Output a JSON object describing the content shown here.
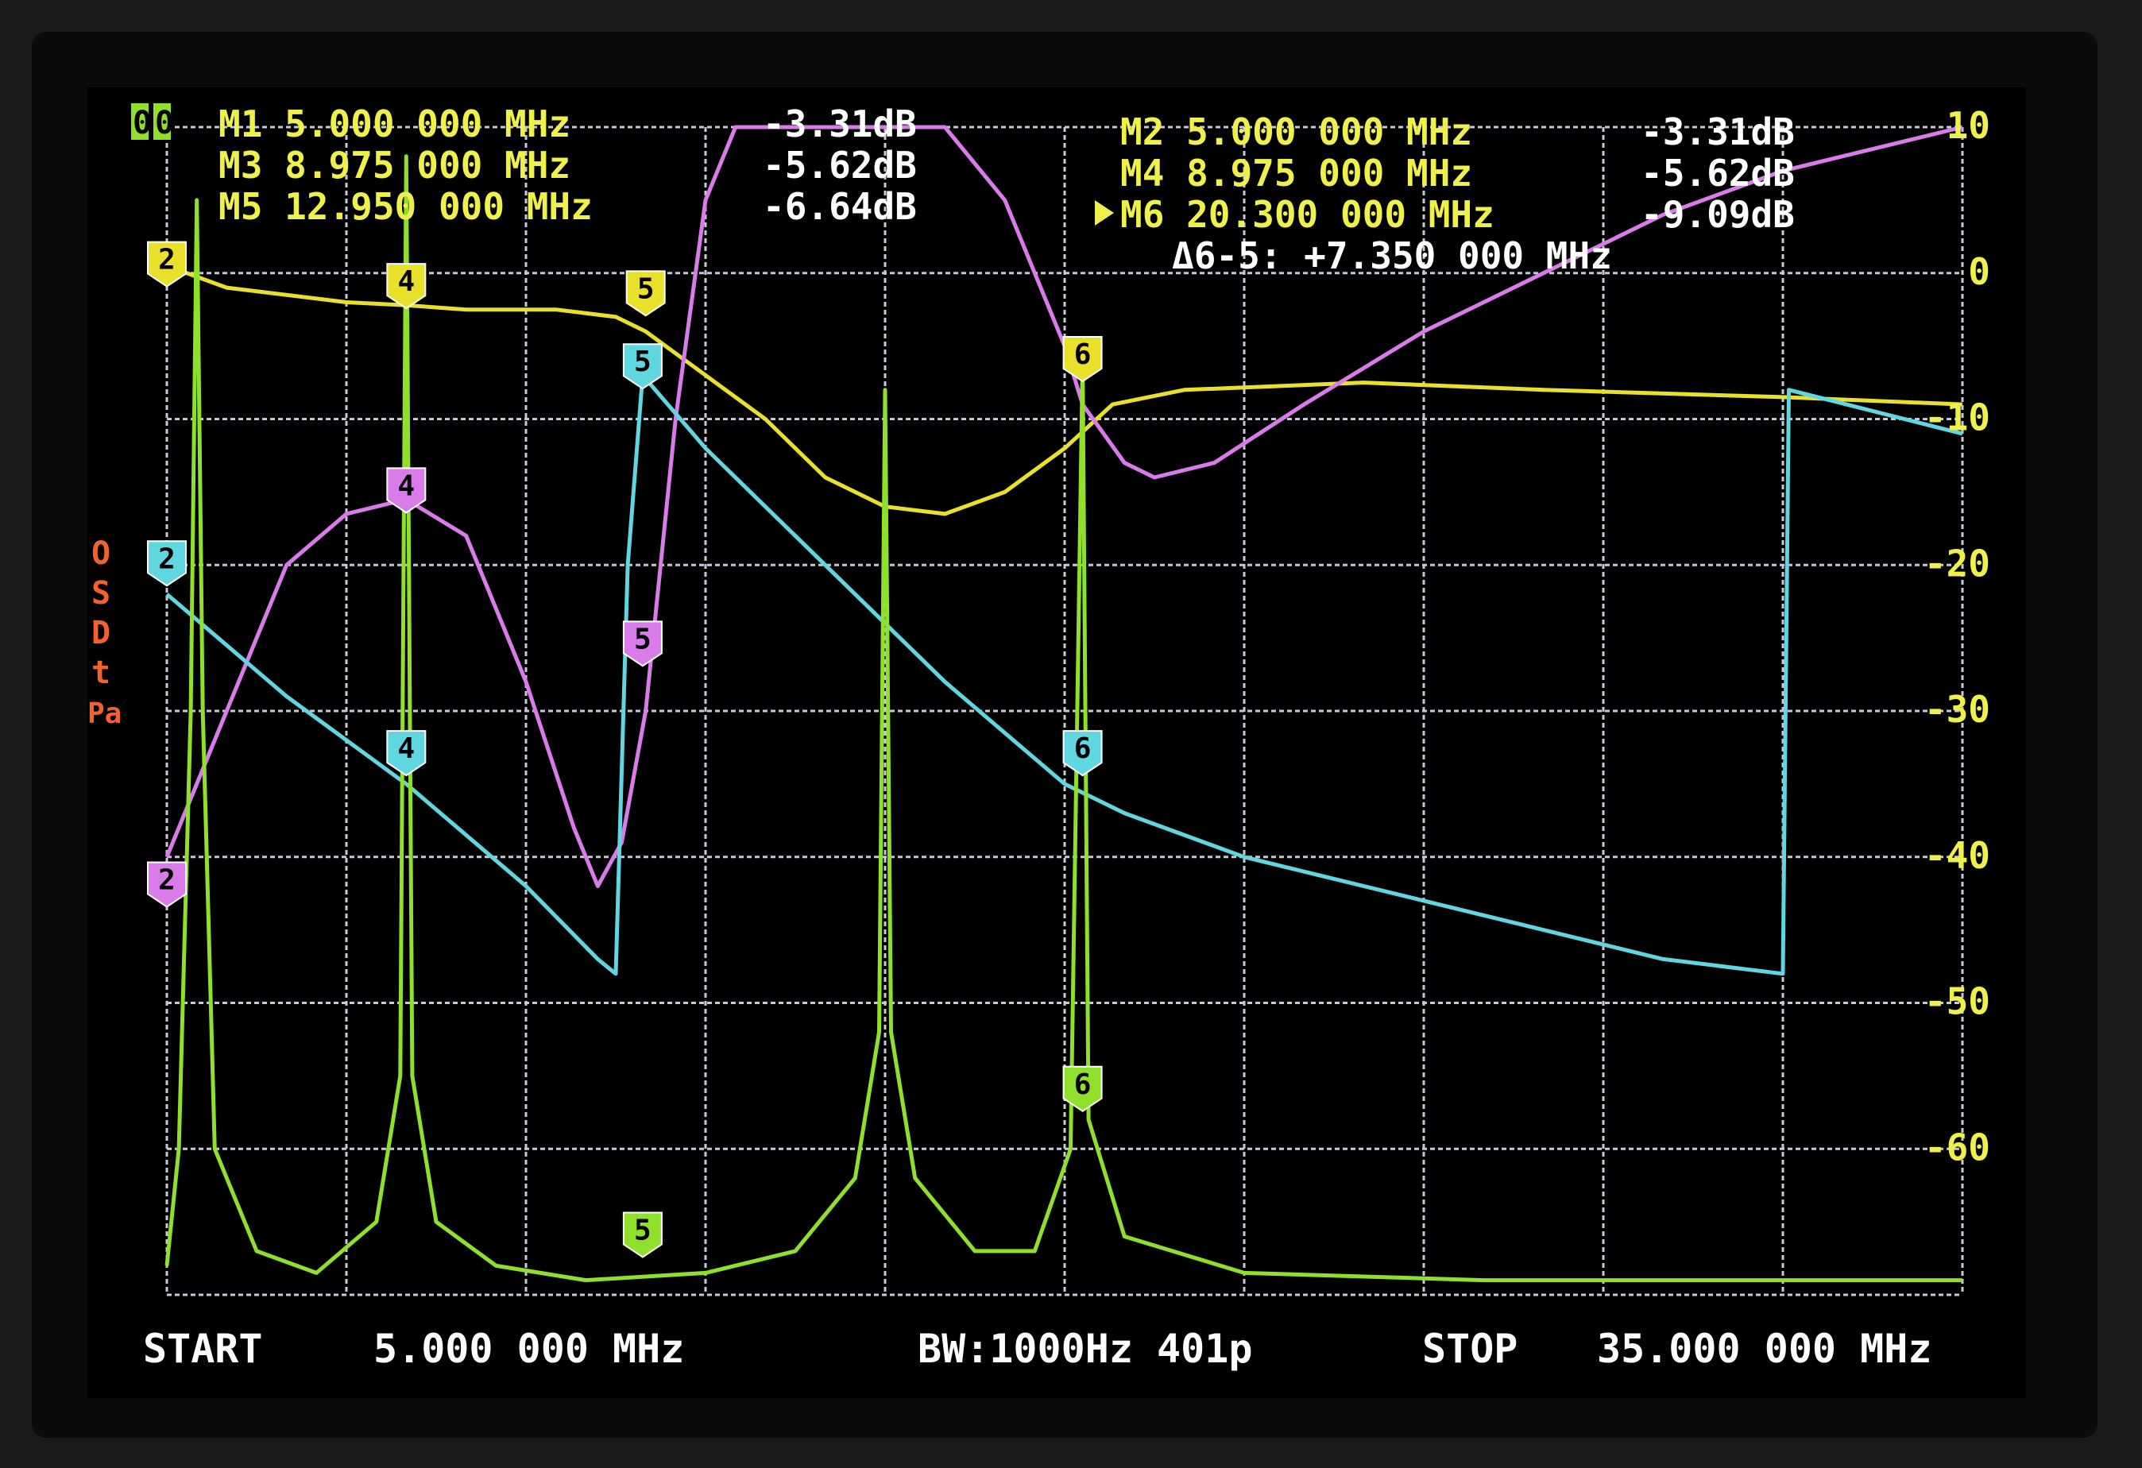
{
  "colors": {
    "background": "#000000",
    "grid": "#c8c8d8",
    "trace1": "#e8e02a",
    "trace2": "#d97be8",
    "trace3": "#5fd6e0",
    "trace4": "#8ee02a",
    "text_white": "#ffffff",
    "text_yellow": "#f0f04a",
    "status_orange": "#f2622a"
  },
  "markers_left": [
    {
      "label": "M1 5.000 000 MHz",
      "value": "-3.31dB"
    },
    {
      "label": "M3 8.975 000 MHz",
      "value": "-5.62dB"
    },
    {
      "label": "M5 12.950 000 MHz",
      "value": "-6.64dB"
    }
  ],
  "markers_right": [
    {
      "label": "M2 5.000 000 MHz",
      "value": "-3.31dB"
    },
    {
      "label": "M4 8.975 000 MHz",
      "value": "-5.62dB"
    },
    {
      "label": "M6 20.300 000 MHz",
      "value": "-9.09dB",
      "active": true
    }
  ],
  "delta": "Δ6-5: +7.350 000 MHz",
  "channel_indicators": [
    "0",
    "0"
  ],
  "status_letters": [
    "O",
    "S",
    "D",
    "t",
    "Pa"
  ],
  "footer": {
    "start_label": "START",
    "start_value": "5.000 000 MHz",
    "bw": "BW:1000Hz 401p",
    "stop_label": "STOP",
    "stop_value": "35.000 000 MHz"
  },
  "chart_data": {
    "type": "line",
    "x_range_mhz": [
      5,
      35
    ],
    "y_range_db": [
      -70,
      10
    ],
    "grid": true,
    "y_tick_labels": [
      "10",
      "0",
      "-10",
      "-20",
      "-30",
      "-40",
      "-50",
      "-60"
    ],
    "y_tick_values": [
      10,
      0,
      -10,
      -20,
      -30,
      -40,
      -50,
      -60
    ],
    "series": [
      {
        "color": "#e8e02a",
        "points": [
          [
            5,
            0.5
          ],
          [
            6,
            -1
          ],
          [
            8,
            -2
          ],
          [
            9,
            -2.2
          ],
          [
            10,
            -2.5
          ],
          [
            11.5,
            -2.5
          ],
          [
            12.5,
            -3
          ],
          [
            13,
            -4
          ],
          [
            14,
            -7
          ],
          [
            15,
            -10
          ],
          [
            16,
            -14
          ],
          [
            17,
            -16
          ],
          [
            18,
            -16.5
          ],
          [
            19,
            -15
          ],
          [
            20,
            -12
          ],
          [
            20.8,
            -9
          ],
          [
            22,
            -8
          ],
          [
            25,
            -7.5
          ],
          [
            28,
            -8
          ],
          [
            32,
            -8.5
          ],
          [
            35,
            -9
          ]
        ],
        "marker_tags": [
          [
            "2",
            5,
            0.5
          ],
          [
            "4",
            9,
            -1
          ],
          [
            "5",
            13,
            -1.5
          ],
          [
            "6",
            20.3,
            -6
          ]
        ]
      },
      {
        "color": "#d97be8",
        "points": [
          [
            5,
            -40
          ],
          [
            6,
            -30
          ],
          [
            7,
            -20
          ],
          [
            8,
            -16.5
          ],
          [
            9,
            -15.5
          ],
          [
            10,
            -18
          ],
          [
            11,
            -28
          ],
          [
            11.8,
            -38
          ],
          [
            12.2,
            -42
          ],
          [
            12.6,
            -39
          ],
          [
            13,
            -30
          ],
          [
            13.5,
            -10
          ],
          [
            14,
            5
          ],
          [
            14.5,
            10
          ],
          [
            18,
            10
          ],
          [
            19,
            5
          ],
          [
            20,
            -5
          ],
          [
            20.3,
            -9
          ],
          [
            21,
            -13
          ],
          [
            21.5,
            -14
          ],
          [
            22.5,
            -13
          ],
          [
            24,
            -9
          ],
          [
            26,
            -4
          ],
          [
            28,
            0
          ],
          [
            30,
            4
          ],
          [
            32,
            7
          ],
          [
            35,
            10
          ]
        ],
        "marker_tags": [
          [
            "2",
            5,
            -42
          ],
          [
            "4",
            9,
            -15
          ],
          [
            "5",
            12.95,
            -25.5
          ]
        ]
      },
      {
        "color": "#5fd6e0",
        "points": [
          [
            5,
            -22
          ],
          [
            7,
            -29
          ],
          [
            9,
            -35
          ],
          [
            11,
            -42
          ],
          [
            12.2,
            -47
          ],
          [
            12.5,
            -48
          ],
          [
            12.7,
            -20
          ],
          [
            12.95,
            -7
          ],
          [
            14,
            -12
          ],
          [
            16,
            -20
          ],
          [
            18,
            -28
          ],
          [
            20,
            -35
          ],
          [
            21,
            -37
          ],
          [
            23,
            -40
          ],
          [
            26,
            -43
          ],
          [
            30,
            -47
          ],
          [
            32,
            -48
          ],
          [
            32.1,
            -8
          ],
          [
            35,
            -11
          ]
        ],
        "marker_tags": [
          [
            "2",
            5,
            -20
          ],
          [
            "4",
            9,
            -33
          ],
          [
            "5",
            12.95,
            -6.5
          ],
          [
            "6",
            20.3,
            -33
          ]
        ]
      },
      {
        "color": "#8ee02a",
        "points": [
          [
            5,
            -68
          ],
          [
            5.2,
            -60
          ],
          [
            5.4,
            -30
          ],
          [
            5.5,
            5
          ],
          [
            5.6,
            -30
          ],
          [
            5.8,
            -60
          ],
          [
            6.5,
            -67
          ],
          [
            7.5,
            -68.5
          ],
          [
            8.5,
            -65
          ],
          [
            8.9,
            -55
          ],
          [
            9,
            8
          ],
          [
            9.1,
            -55
          ],
          [
            9.5,
            -65
          ],
          [
            10.5,
            -68
          ],
          [
            12,
            -69
          ],
          [
            14,
            -68.5
          ],
          [
            15.5,
            -67
          ],
          [
            16.5,
            -62
          ],
          [
            16.9,
            -52
          ],
          [
            17,
            -8
          ],
          [
            17.1,
            -52
          ],
          [
            17.5,
            -62
          ],
          [
            18.5,
            -67
          ],
          [
            19.5,
            -67
          ],
          [
            20.1,
            -60
          ],
          [
            20.3,
            -6
          ],
          [
            20.4,
            -58
          ],
          [
            21,
            -66
          ],
          [
            23,
            -68.5
          ],
          [
            27,
            -69
          ],
          [
            35,
            -69
          ]
        ],
        "marker_tags": [
          [
            "5",
            12.95,
            -66
          ],
          [
            "6",
            20.3,
            -56
          ]
        ]
      }
    ]
  }
}
